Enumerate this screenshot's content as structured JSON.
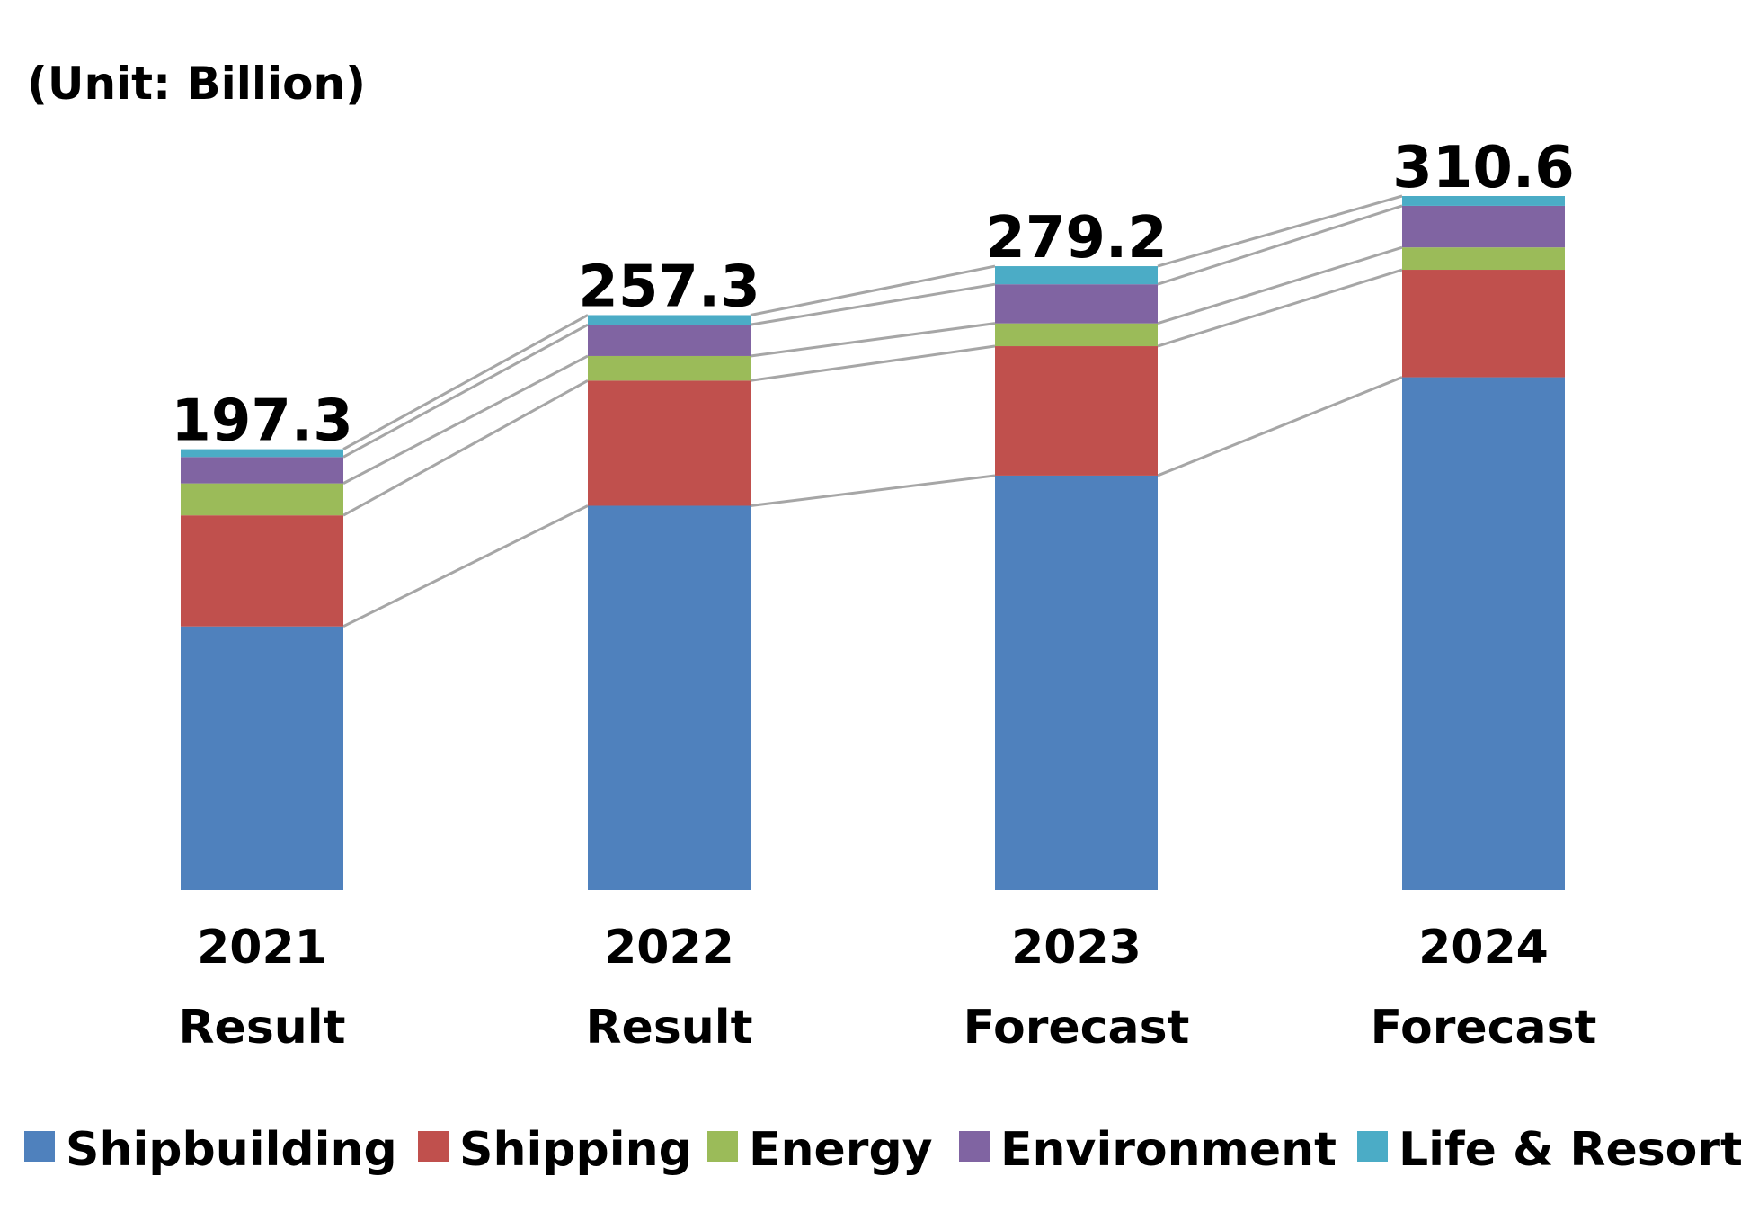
{
  "chart_data": {
    "type": "bar",
    "stacked": true,
    "unit_label": "(Unit: Billion)",
    "categories": [
      {
        "year": "2021",
        "status": "Result"
      },
      {
        "year": "2022",
        "status": "Result"
      },
      {
        "year": "2023",
        "status": "Forecast"
      },
      {
        "year": "2024",
        "status": "Forecast"
      }
    ],
    "totals": [
      "197.3",
      "257.3",
      "279.2",
      "310.6"
    ],
    "series": [
      {
        "name": "Shipbuilding",
        "color": "#4f81bd",
        "values": [
          118.0,
          172.0,
          185.5,
          229.5
        ]
      },
      {
        "name": "Shipping",
        "color": "#c0504d",
        "values": [
          49.7,
          56.0,
          57.9,
          48.1
        ]
      },
      {
        "name": "Energy",
        "color": "#9bbb59",
        "values": [
          14.3,
          11.0,
          10.2,
          10.0
        ]
      },
      {
        "name": "Environment",
        "color": "#8064a2",
        "values": [
          11.8,
          14.0,
          17.5,
          18.6
        ]
      },
      {
        "name": "Life & Resort",
        "color": "#4bacc6",
        "values": [
          3.5,
          4.3,
          8.1,
          4.4
        ]
      }
    ],
    "ylim": [
      0,
      310.6
    ],
    "connector_lines": true,
    "connector_color": "#a6a6a6",
    "grid": false,
    "legend_position": "bottom"
  }
}
